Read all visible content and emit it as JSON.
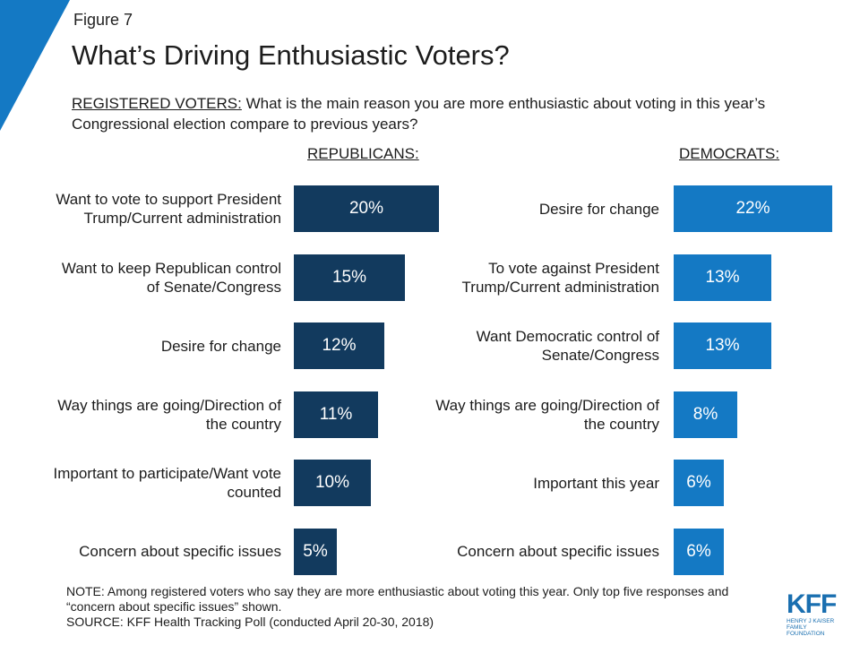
{
  "figure_label": "Figure 7",
  "title": "What’s Driving Enthusiastic Voters?",
  "question_lead": "REGISTERED VOTERS:",
  "question_text": " What is the main reason you are more enthusiastic about voting in this year’s Congressional election compare to previous years?",
  "note": "NOTE: Among registered voters who say they are more enthusiastic about voting this year. Only top five responses and “concern about specific issues” shown.",
  "source": "SOURCE: KFF Health Tracking Poll (conducted April 20-30, 2018)",
  "logo": {
    "text": "KFF",
    "sub1": "HENRY J KAISER",
    "sub2": "FAMILY FOUNDATION"
  },
  "colors": {
    "republicans": "#123a5e",
    "democrats": "#1479c4",
    "corner": "#1479c4"
  },
  "chart_data": [
    {
      "type": "bar",
      "panel": "REPUBLICANS:",
      "orientation": "horizontal",
      "categories": [
        "Want to vote to support President Trump/Current administration",
        "Want to keep Republican control of Senate/Congress",
        "Desire for change",
        "Way things are going/Direction of the country",
        "Important to participate/Want vote counted",
        "Concern about specific issues"
      ],
      "values": [
        20,
        15,
        12,
        11,
        10,
        5
      ],
      "data_labels": [
        "20%",
        "15%",
        "12%",
        "11%",
        "10%",
        "5%"
      ],
      "xlim": [
        0,
        25
      ]
    },
    {
      "type": "bar",
      "panel": "DEMOCRATS:",
      "orientation": "horizontal",
      "categories": [
        "Desire for change",
        "To vote against President Trump/Current administration",
        "Want Democratic control of Senate/Congress",
        "Way things are going/Direction of the country",
        "Important this year",
        "Concern about specific issues"
      ],
      "values": [
        22,
        13,
        13,
        8,
        6,
        6
      ],
      "data_labels": [
        "22%",
        "13%",
        "13%",
        "8%",
        "6%",
        "6%"
      ],
      "xlim": [
        0,
        25
      ]
    }
  ]
}
